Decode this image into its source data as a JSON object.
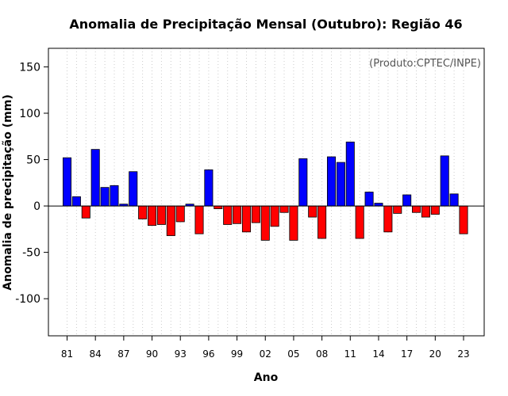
{
  "chart_data": {
    "type": "bar",
    "title": "Anomalia de Precipitação Mensal (Outubro): Região 46",
    "source_note": "(Produto:CPTEC/INPE)",
    "xlabel": "Ano",
    "ylabel": "Anomalia de precipitação (mm)",
    "ylim": [
      -140,
      170
    ],
    "yticks": [
      -100,
      -50,
      0,
      50,
      100,
      150
    ],
    "grid": "vertical dotted",
    "positive_color": "#0000ff",
    "negative_color": "#ff0000",
    "categories": [
      1981,
      1982,
      1983,
      1984,
      1985,
      1986,
      1987,
      1988,
      1989,
      1990,
      1991,
      1992,
      1993,
      1994,
      1995,
      1996,
      1997,
      1998,
      1999,
      2000,
      2001,
      2002,
      2003,
      2004,
      2005,
      2006,
      2007,
      2008,
      2009,
      2010,
      2011,
      2012,
      2013,
      2014,
      2015,
      2016,
      2017,
      2018,
      2019,
      2020,
      2021,
      2022,
      2023
    ],
    "values": [
      52,
      10,
      -13,
      61,
      20,
      22,
      2,
      37,
      -14,
      -21,
      -20,
      -32,
      -17,
      2,
      -30,
      39,
      -3,
      -20,
      -19,
      -28,
      -18,
      -37,
      -22,
      -7,
      -37,
      51,
      -12,
      -35,
      53,
      47,
      69,
      -35,
      15,
      3,
      -28,
      -8,
      12,
      -7,
      -12,
      -9,
      54,
      13,
      -30
    ],
    "xtick_labels": [
      "81",
      "84",
      "87",
      "90",
      "93",
      "96",
      "99",
      "02",
      "05",
      "08",
      "11",
      "14",
      "17",
      "20",
      "23"
    ]
  }
}
